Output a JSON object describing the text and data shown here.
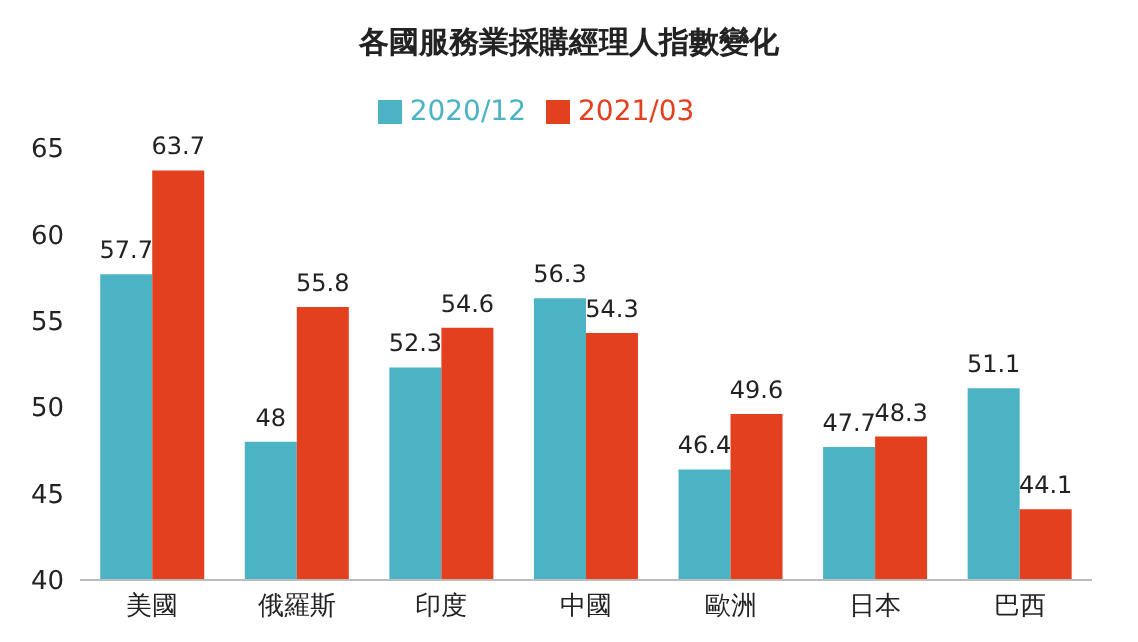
{
  "chart_data": {
    "type": "bar",
    "title": "各國服務業採購經理人指數變化",
    "categories": [
      "美國",
      "俄羅斯",
      "印度",
      "中國",
      "歐洲",
      "日本",
      "巴西"
    ],
    "series": [
      {
        "name": "2020/12",
        "color": "#4bb3c4",
        "values": [
          57.7,
          48,
          52.3,
          56.3,
          46.4,
          47.7,
          51.1
        ]
      },
      {
        "name": "2021/03",
        "color": "#e2401f",
        "values": [
          63.7,
          55.8,
          54.6,
          54.3,
          49.6,
          48.3,
          44.1
        ]
      }
    ],
    "ylim": [
      40,
      65
    ],
    "yticks": [
      40,
      45,
      50,
      55,
      60,
      65
    ],
    "grid": false,
    "legend": "top",
    "data_labels": true
  }
}
